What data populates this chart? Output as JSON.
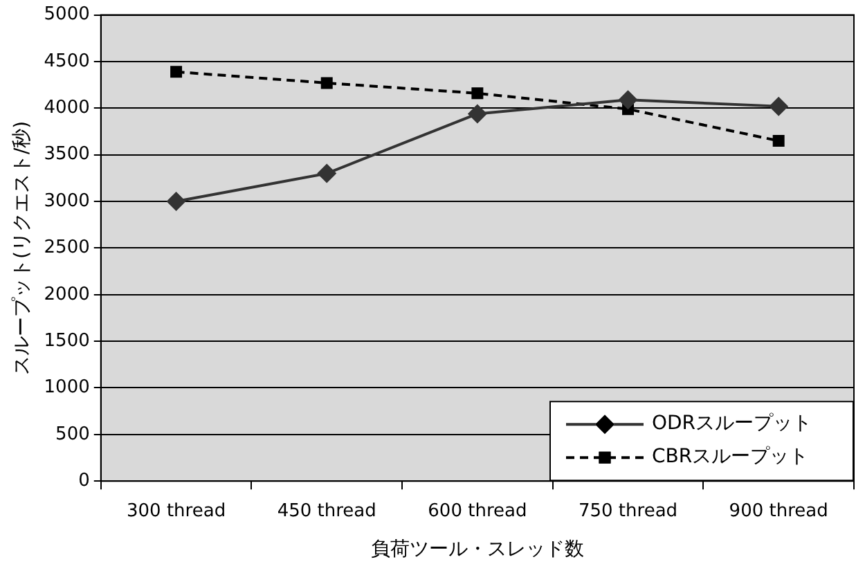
{
  "chart_data": {
    "type": "line",
    "xlabel": "負荷ツール・スレッド数",
    "ylabel": "スループット(リクエスト/秒)",
    "categories": [
      "300 thread",
      "450 thread",
      "600 thread",
      "750 thread",
      "900 thread"
    ],
    "series": [
      {
        "name": "ODRスループット",
        "color": "#333333",
        "marker": "diamond",
        "line_style": "solid",
        "values": [
          3000,
          3300,
          3940,
          4090,
          4020
        ]
      },
      {
        "name": "CBRスループット",
        "color": "#000000",
        "marker": "square",
        "line_style": "dashed",
        "values": [
          4390,
          4270,
          4160,
          3990,
          3650
        ]
      }
    ],
    "ylim": [
      0,
      5000
    ],
    "yticks": [
      0,
      500,
      1000,
      1500,
      2000,
      2500,
      3000,
      3500,
      4000,
      4500,
      5000
    ],
    "grid": "y",
    "legend": "bottom right"
  }
}
